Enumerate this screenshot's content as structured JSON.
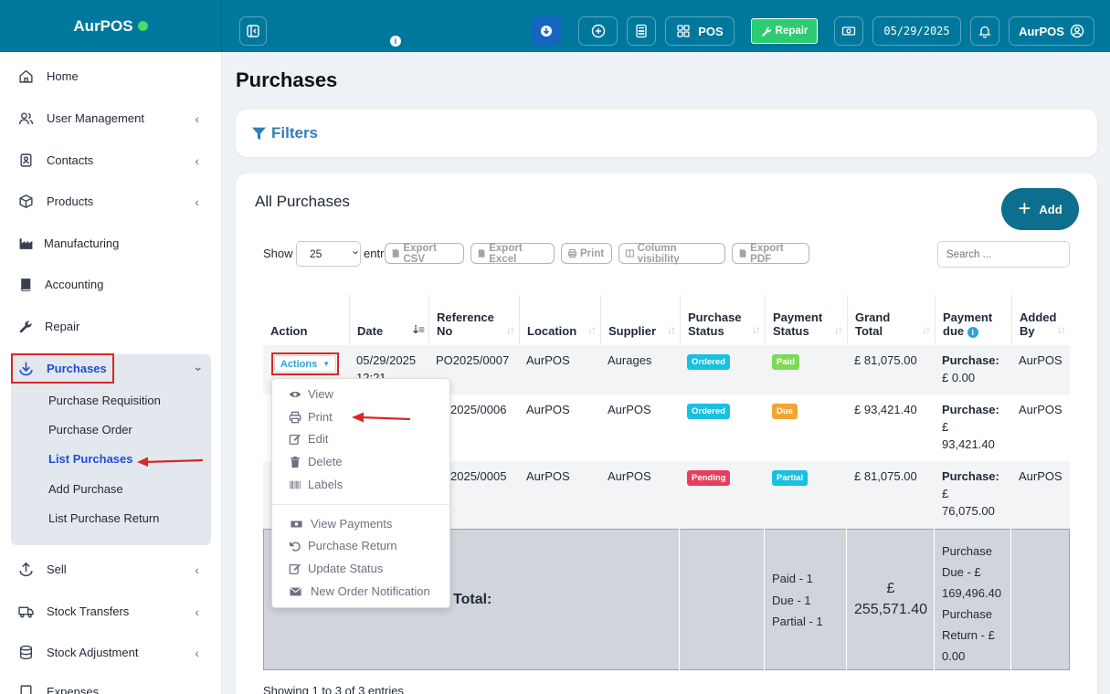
{
  "brand": {
    "name": "AurPOS"
  },
  "topbar": {
    "pos_label": "POS",
    "repair_label": "Repair",
    "date": "05/29/2025",
    "user": "AurPOS"
  },
  "sidebar": {
    "items": [
      {
        "label": "Home"
      },
      {
        "label": "User Management"
      },
      {
        "label": "Contacts"
      },
      {
        "label": "Products"
      },
      {
        "label": "Manufacturing"
      },
      {
        "label": "Accounting"
      },
      {
        "label": "Repair"
      },
      {
        "label": "Purchases"
      },
      {
        "label": "Sell"
      },
      {
        "label": "Stock Transfers"
      },
      {
        "label": "Stock Adjustment"
      },
      {
        "label": "Expenses"
      }
    ],
    "purchases_sub": [
      {
        "label": "Purchase Requisition"
      },
      {
        "label": "Purchase Order"
      },
      {
        "label": "List Purchases"
      },
      {
        "label": "Add Purchase"
      },
      {
        "label": "List Purchase Return"
      }
    ]
  },
  "page": {
    "title": "Purchases",
    "filters_label": "Filters"
  },
  "panel": {
    "title": "All Purchases",
    "add_label": "Add",
    "show_label": "Show",
    "entries_label": "entries",
    "page_size": "25",
    "search_placeholder": "Search ...",
    "footer": "Showing 1 to 3 of 3 entries"
  },
  "export_buttons": [
    "Export CSV",
    "Export Excel",
    "Print",
    "Column visibility",
    "Export PDF"
  ],
  "table": {
    "headers": [
      "Action",
      "Date",
      "Reference No",
      "Location",
      "Supplier",
      "Purchase Status",
      "Payment Status",
      "Grand Total",
      "Payment due",
      "Added By"
    ],
    "header_lines": {
      "reference": [
        "Reference",
        "No"
      ],
      "purchase_status": [
        "Purchase",
        "Status"
      ],
      "payment_status": [
        "Payment",
        "Status"
      ],
      "grand_total": [
        "Grand",
        "Total"
      ],
      "payment_due": [
        "Payment",
        "due"
      ],
      "added_by": [
        "Added",
        "By"
      ]
    },
    "actions_label": "Actions",
    "rows": [
      {
        "date": "05/29/2025",
        "date2": "12:21",
        "ref": "PO2025/0007",
        "location": "AurPOS",
        "supplier": "Aurages",
        "purchase_status": "Ordered",
        "payment_status": "Paid",
        "grand_total": "£ 81,075.00",
        "due_label": "Purchase:",
        "due_value": "£ 0.00",
        "added_by": "AurPOS"
      },
      {
        "ref_visible": "2025/0006",
        "location": "AurPOS",
        "supplier": "AurPOS",
        "purchase_status": "Ordered",
        "payment_status": "Due",
        "grand_total": "£ 93,421.40",
        "due_label": "Purchase:",
        "due_value_1": "£",
        "due_value_2": "93,421.40",
        "added_by": "AurPOS"
      },
      {
        "ref_visible": "2025/0005",
        "location": "AurPOS",
        "supplier": "AurPOS",
        "purchase_status": "Pending",
        "payment_status": "Partial",
        "grand_total": "£ 81,075.00",
        "due_label": "Purchase:",
        "due_value_1": "£",
        "due_value_2": "76,075.00",
        "added_by": "AurPOS"
      }
    ],
    "total": {
      "label": "Total:",
      "payment_status_summary": [
        "Paid - 1",
        "Due - 1",
        "Partial - 1"
      ],
      "grand_total_1": "£",
      "grand_total_2": "255,571.40",
      "due_summary": [
        "Purchase",
        "Due - £",
        "169,496.40",
        "Purchase",
        "Return - £",
        "0.00"
      ]
    }
  },
  "actions_menu": {
    "items": [
      "View",
      "Print",
      "Edit",
      "Delete",
      "Labels"
    ],
    "items2": [
      "View Payments",
      "Purchase Return",
      "Update Status",
      "New Order Notification"
    ]
  },
  "colors": {
    "topbar": "#00779c",
    "ordered": "#19c0e0",
    "paid": "#7ed957",
    "due": "#f0a534",
    "pending": "#e83e5c",
    "partial": "#19c0e0",
    "annotation": "#d62828"
  }
}
